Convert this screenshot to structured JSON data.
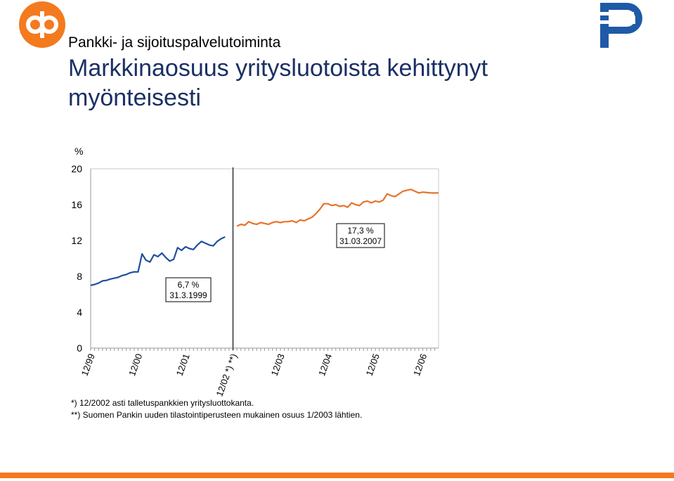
{
  "header": {
    "subtitle": "Pankki- ja sijoituspalvelutoiminta",
    "title": "Markkinaosuus yritysluotoista kehittynyt myönteisesti"
  },
  "colors": {
    "brand_orange": "#f47a1f",
    "brand_blue": "#1f5aa6",
    "title_navy": "#1a2f63",
    "series_before": "#1f4fa0",
    "series_after": "#e8732a"
  },
  "logos": {
    "left": "op-logo",
    "right": "pohjola-logo"
  },
  "notes": [
    "*) 12/2002 asti talletuspankkien yritysluottokanta.",
    "**) Suomen Pankin uuden tilastointiperusteen mukainen osuus 1/2003 lähtien."
  ],
  "chart_data": {
    "type": "line",
    "ylabel": "%",
    "ylim": [
      0,
      20
    ],
    "yticks": [
      0,
      4,
      8,
      12,
      16,
      20
    ],
    "xlim": [
      1999.917,
      2007.25
    ],
    "x_tick_labels": [
      "12/99",
      "12/00",
      "12/01",
      "12/02 *) **)",
      "12/03",
      "12/04",
      "12/05",
      "12/06"
    ],
    "x_tick_positions": [
      1999.917,
      2000.917,
      2001.917,
      2002.917,
      2003.917,
      2004.917,
      2005.917,
      2006.917
    ],
    "grid": "horizontal-top-only",
    "break_line_x": 2002.917,
    "series": [
      {
        "period": "before",
        "values": [
          [
            1999.917,
            7.0
          ],
          [
            2000.0,
            7.1
          ],
          [
            2000.083,
            7.25
          ],
          [
            2000.167,
            7.5
          ],
          [
            2000.25,
            7.55
          ],
          [
            2000.333,
            7.7
          ],
          [
            2000.417,
            7.8
          ],
          [
            2000.5,
            7.9
          ],
          [
            2000.583,
            8.1
          ],
          [
            2000.667,
            8.2
          ],
          [
            2000.75,
            8.4
          ],
          [
            2000.833,
            8.5
          ],
          [
            2000.917,
            8.5
          ],
          [
            2001.0,
            10.5
          ],
          [
            2001.083,
            9.8
          ],
          [
            2001.167,
            9.6
          ],
          [
            2001.25,
            10.4
          ],
          [
            2001.333,
            10.2
          ],
          [
            2001.417,
            10.6
          ],
          [
            2001.5,
            10.1
          ],
          [
            2001.583,
            9.7
          ],
          [
            2001.667,
            9.9
          ],
          [
            2001.75,
            11.2
          ],
          [
            2001.833,
            10.9
          ],
          [
            2001.917,
            11.3
          ],
          [
            2002.0,
            11.1
          ],
          [
            2002.083,
            11.0
          ],
          [
            2002.167,
            11.5
          ],
          [
            2002.25,
            11.9
          ],
          [
            2002.333,
            11.7
          ],
          [
            2002.417,
            11.5
          ],
          [
            2002.5,
            11.4
          ],
          [
            2002.583,
            11.9
          ],
          [
            2002.667,
            12.2
          ],
          [
            2002.75,
            12.4
          ]
        ]
      },
      {
        "period": "after",
        "values": [
          [
            2003.0,
            13.6
          ],
          [
            2003.083,
            13.8
          ],
          [
            2003.167,
            13.7
          ],
          [
            2003.25,
            14.1
          ],
          [
            2003.333,
            13.9
          ],
          [
            2003.417,
            13.8
          ],
          [
            2003.5,
            14.0
          ],
          [
            2003.583,
            13.9
          ],
          [
            2003.667,
            13.8
          ],
          [
            2003.75,
            14.0
          ],
          [
            2003.833,
            14.1
          ],
          [
            2003.917,
            14.0
          ],
          [
            2004.0,
            14.1
          ],
          [
            2004.083,
            14.1
          ],
          [
            2004.167,
            14.2
          ],
          [
            2004.25,
            14.0
          ],
          [
            2004.333,
            14.3
          ],
          [
            2004.417,
            14.2
          ],
          [
            2004.5,
            14.4
          ],
          [
            2004.583,
            14.6
          ],
          [
            2004.667,
            15.0
          ],
          [
            2004.75,
            15.5
          ],
          [
            2004.833,
            16.1
          ],
          [
            2004.917,
            16.1
          ],
          [
            2005.0,
            15.9
          ],
          [
            2005.083,
            16.0
          ],
          [
            2005.167,
            15.8
          ],
          [
            2005.25,
            15.9
          ],
          [
            2005.333,
            15.7
          ],
          [
            2005.417,
            16.2
          ],
          [
            2005.5,
            16.0
          ],
          [
            2005.583,
            15.9
          ],
          [
            2005.667,
            16.3
          ],
          [
            2005.75,
            16.4
          ],
          [
            2005.833,
            16.2
          ],
          [
            2005.917,
            16.4
          ],
          [
            2006.0,
            16.3
          ],
          [
            2006.083,
            16.5
          ],
          [
            2006.167,
            17.2
          ],
          [
            2006.25,
            17.0
          ],
          [
            2006.333,
            16.9
          ],
          [
            2006.417,
            17.2
          ],
          [
            2006.5,
            17.5
          ],
          [
            2006.583,
            17.6
          ],
          [
            2006.667,
            17.7
          ],
          [
            2006.75,
            17.5
          ],
          [
            2006.833,
            17.3
          ],
          [
            2006.917,
            17.4
          ],
          [
            2007.083,
            17.3
          ],
          [
            2007.25,
            17.3
          ]
        ]
      }
    ],
    "annotations": [
      {
        "line1": "6,7 %",
        "line2": "31.3.1999"
      },
      {
        "line1": "17,3 %",
        "line2": "31.03.2007"
      }
    ]
  }
}
